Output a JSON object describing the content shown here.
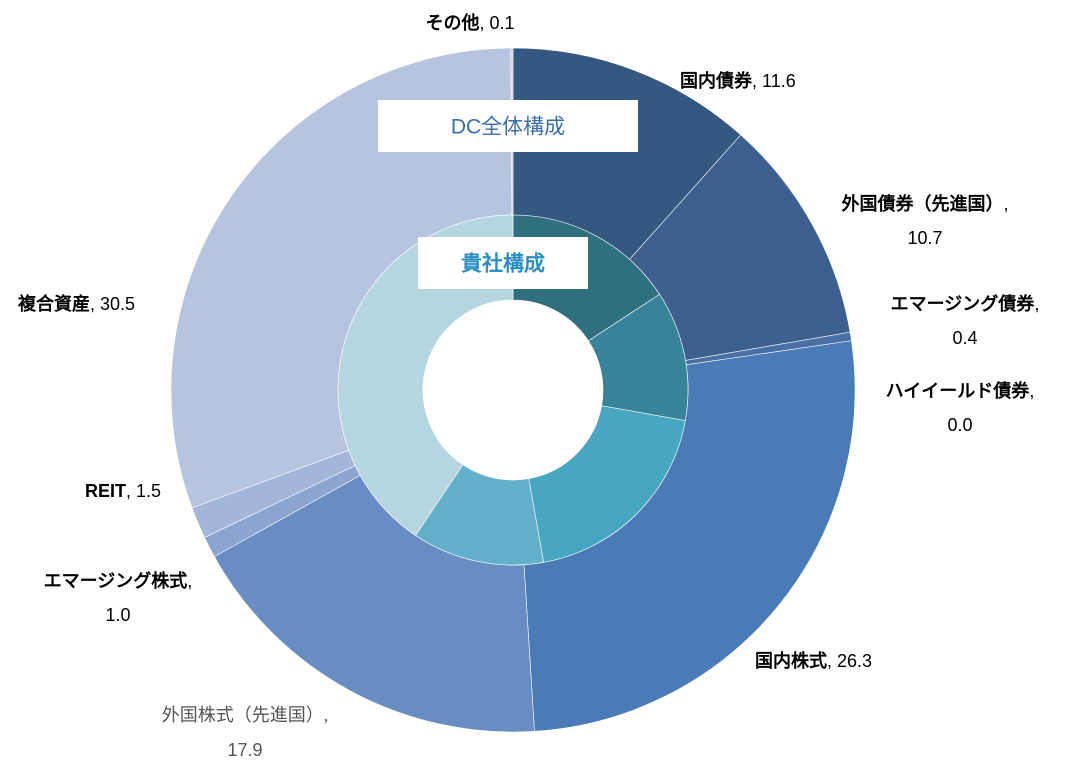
{
  "chart_data": {
    "type": "donut",
    "categories": [
      "国内債券",
      "外国債券（先進国）",
      "エマージング債券",
      "ハイイールド債券",
      "国内株式",
      "外国株式（先進国）",
      "エマージング株式",
      "REIT",
      "複合資産",
      "その他"
    ],
    "label_separator": ", ",
    "series": [
      {
        "name": "DC全体構成",
        "values": [
          11.6,
          10.7,
          0.4,
          0.0,
          26.3,
          17.9,
          1.0,
          1.5,
          30.5,
          0.1
        ],
        "value_labels": [
          "11.6",
          "10.7",
          "0.4",
          "0.0",
          "26.3",
          "17.9",
          "1.0",
          "1.5",
          "30.5",
          "0.1"
        ],
        "colors": [
          "#34587f",
          "#3d5f8d",
          "#4a6fa5",
          "#4a72ac",
          "#4a7bb7",
          "#688dc3",
          "#8ba4d0",
          "#a3b5d9",
          "#b7c4df",
          "#c5cfe5"
        ]
      },
      {
        "name": "貴社構成",
        "values": [
          15.8,
          12.0,
          0,
          0,
          19.4,
          12.2,
          0,
          0,
          40.6,
          0
        ],
        "colors": [
          "#2f7080",
          "#37849a",
          "#3f92ad",
          "#3f92ad",
          "#47a6c2",
          "#62b0c9",
          "#8cc3d4",
          "#a5cdd9",
          "#b5d6e0",
          "#c5dde5"
        ]
      }
    ]
  }
}
